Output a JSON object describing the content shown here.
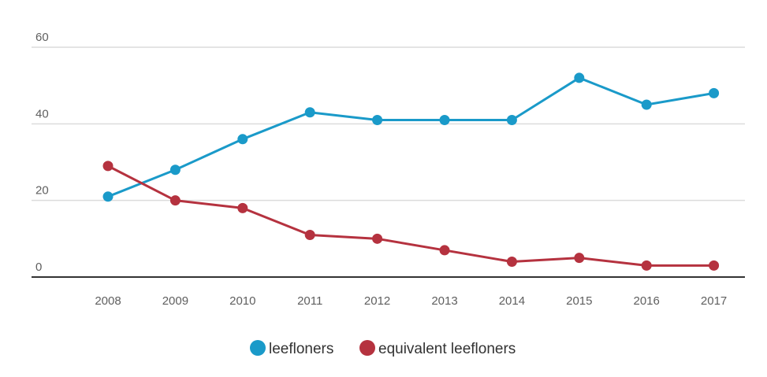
{
  "chart_data": {
    "type": "line",
    "title": "",
    "xlabel": "",
    "ylabel": "",
    "categories": [
      "2008",
      "2009",
      "2010",
      "2011",
      "2012",
      "2013",
      "2014",
      "2015",
      "2016",
      "2017"
    ],
    "ylim": [
      0,
      60
    ],
    "yticks": [
      0,
      20,
      40,
      60
    ],
    "grid": true,
    "legend_position": "bottom-center",
    "series": [
      {
        "name": "leefloners",
        "color": "#1a9ac9",
        "values": [
          21,
          28,
          36,
          43,
          41,
          41,
          41,
          52,
          45,
          48
        ]
      },
      {
        "name": "equivalent leefloners",
        "color": "#b5323f",
        "values": [
          29,
          20,
          18,
          11,
          10,
          7,
          4,
          5,
          3,
          3
        ]
      }
    ]
  },
  "colors": {
    "gridline": "#dcdcdc",
    "axis": "#333333"
  }
}
